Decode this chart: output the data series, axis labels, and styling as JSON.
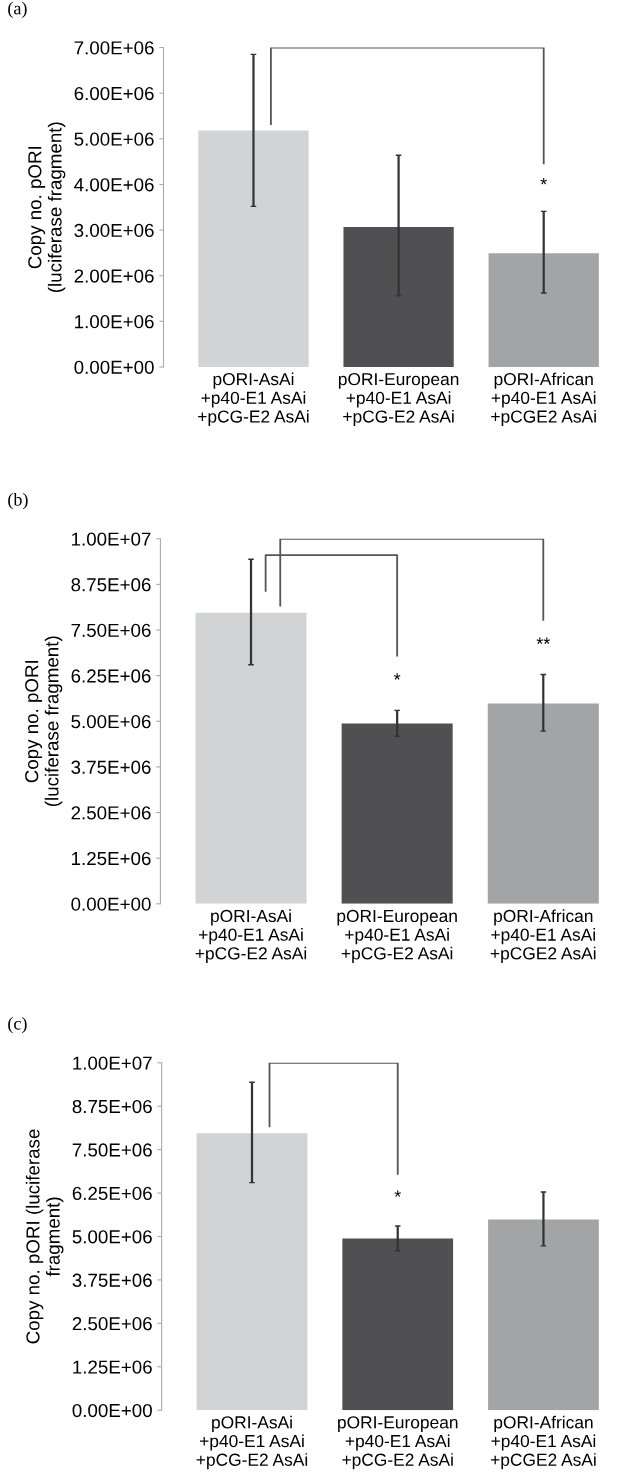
{
  "chart_data": [
    {
      "type": "bar",
      "title": "(a)",
      "ylabel": "Copy no. pORI\n(luciferase fragment)",
      "categories": [
        "pORI-AsAi\n+p40-E1 AsAi\n+pCG-E2 AsAi",
        "pORI-European\n+p40-E1 AsAi\n+pCG-E2 AsAi",
        "pORI-African\n+p40-E1 AsAi\n+pCGE2 AsAi"
      ],
      "values": [
        5180000,
        3070000,
        2490000
      ],
      "errors": [
        [
          3520000,
          6850000
        ],
        [
          1560000,
          4640000
        ],
        [
          1620000,
          3410000
        ]
      ],
      "colors": [
        "#d2d3d5",
        "#505052",
        "#a3a4a6"
      ],
      "ylim": [
        0,
        7000000
      ],
      "yticks": [
        {
          "value": 0,
          "label": "0.00E+00"
        },
        {
          "value": 1000000,
          "label": "1.00E+06"
        },
        {
          "value": 2000000,
          "label": "2.00E+06"
        },
        {
          "value": 3000000,
          "label": "3.00E+06"
        },
        {
          "value": 4000000,
          "label": "4.00E+06"
        },
        {
          "value": 5000000,
          "label": "5.00E+06"
        },
        {
          "value": 6000000,
          "label": "6.00E+06"
        },
        {
          "value": 7000000,
          "label": "7.00E+06"
        }
      ],
      "annotations": [
        "*"
      ],
      "grid": false,
      "legend": false
    },
    {
      "type": "bar",
      "title": "(b)",
      "ylabel": "Copy no. pORI\n(luciferase fragment)",
      "categories": [
        "pORI-AsAi\n+p40-E1 AsAi\n+pCG-E2 AsAi",
        "pORI-European\n+p40-E1 AsAi\n+pCG-E2 AsAi",
        "pORI-African\n+p40-E1 AsAi\n+pCGE2 AsAi"
      ],
      "values": [
        7970000,
        4940000,
        5490000
      ],
      "errors": [
        [
          6550000,
          9440000
        ],
        [
          4590000,
          5300000
        ],
        [
          4730000,
          6280000
        ]
      ],
      "colors": [
        "#d2d3d5",
        "#505052",
        "#a3a4a6"
      ],
      "ylim": [
        0,
        10000000
      ],
      "yticks": [
        {
          "value": 0,
          "label": "0.00E+00"
        },
        {
          "value": 1250000,
          "label": "1.25E+06"
        },
        {
          "value": 2500000,
          "label": "2.50E+06"
        },
        {
          "value": 3750000,
          "label": "3.75E+06"
        },
        {
          "value": 5000000,
          "label": "5.00E+06"
        },
        {
          "value": 6250000,
          "label": "6.25E+06"
        },
        {
          "value": 7500000,
          "label": "7.50E+06"
        },
        {
          "value": 8750000,
          "label": "8.75E+06"
        },
        {
          "value": 10000000,
          "label": "1.00E+07"
        }
      ],
      "annotations": [
        "*",
        "**"
      ],
      "grid": false,
      "legend": false
    },
    {
      "type": "bar",
      "title": "(c)",
      "ylabel": "Copy no. pORI (luciferase\nfragment)",
      "categories": [
        "pORI-AsAi\n+p40-E1 AsAi\n+pCG-E2 AsAi",
        "pORI-European\n+p40-E1 AsAi\n+pCG-E2 AsAi",
        "pORI-African\n+p40-E1 AsAi\n+pCGE2 AsAi"
      ],
      "values": [
        7970000,
        4940000,
        5490000
      ],
      "errors": [
        [
          6550000,
          9440000
        ],
        [
          4590000,
          5300000
        ],
        [
          4730000,
          6280000
        ]
      ],
      "colors": [
        "#d2d3d5",
        "#505052",
        "#a3a4a6"
      ],
      "ylim": [
        0,
        10000000
      ],
      "yticks": [
        {
          "value": 0,
          "label": "0.00E+00"
        },
        {
          "value": 1250000,
          "label": "1.25E+06"
        },
        {
          "value": 2500000,
          "label": "2.50E+06"
        },
        {
          "value": 3750000,
          "label": "3.75E+06"
        },
        {
          "value": 5000000,
          "label": "5.00E+06"
        },
        {
          "value": 6250000,
          "label": "6.25E+06"
        },
        {
          "value": 7500000,
          "label": "7.50E+06"
        },
        {
          "value": 8750000,
          "label": "8.75E+06"
        },
        {
          "value": 10000000,
          "label": "1.00E+07"
        }
      ],
      "annotations": [
        "*"
      ],
      "grid": false,
      "legend": false
    }
  ]
}
